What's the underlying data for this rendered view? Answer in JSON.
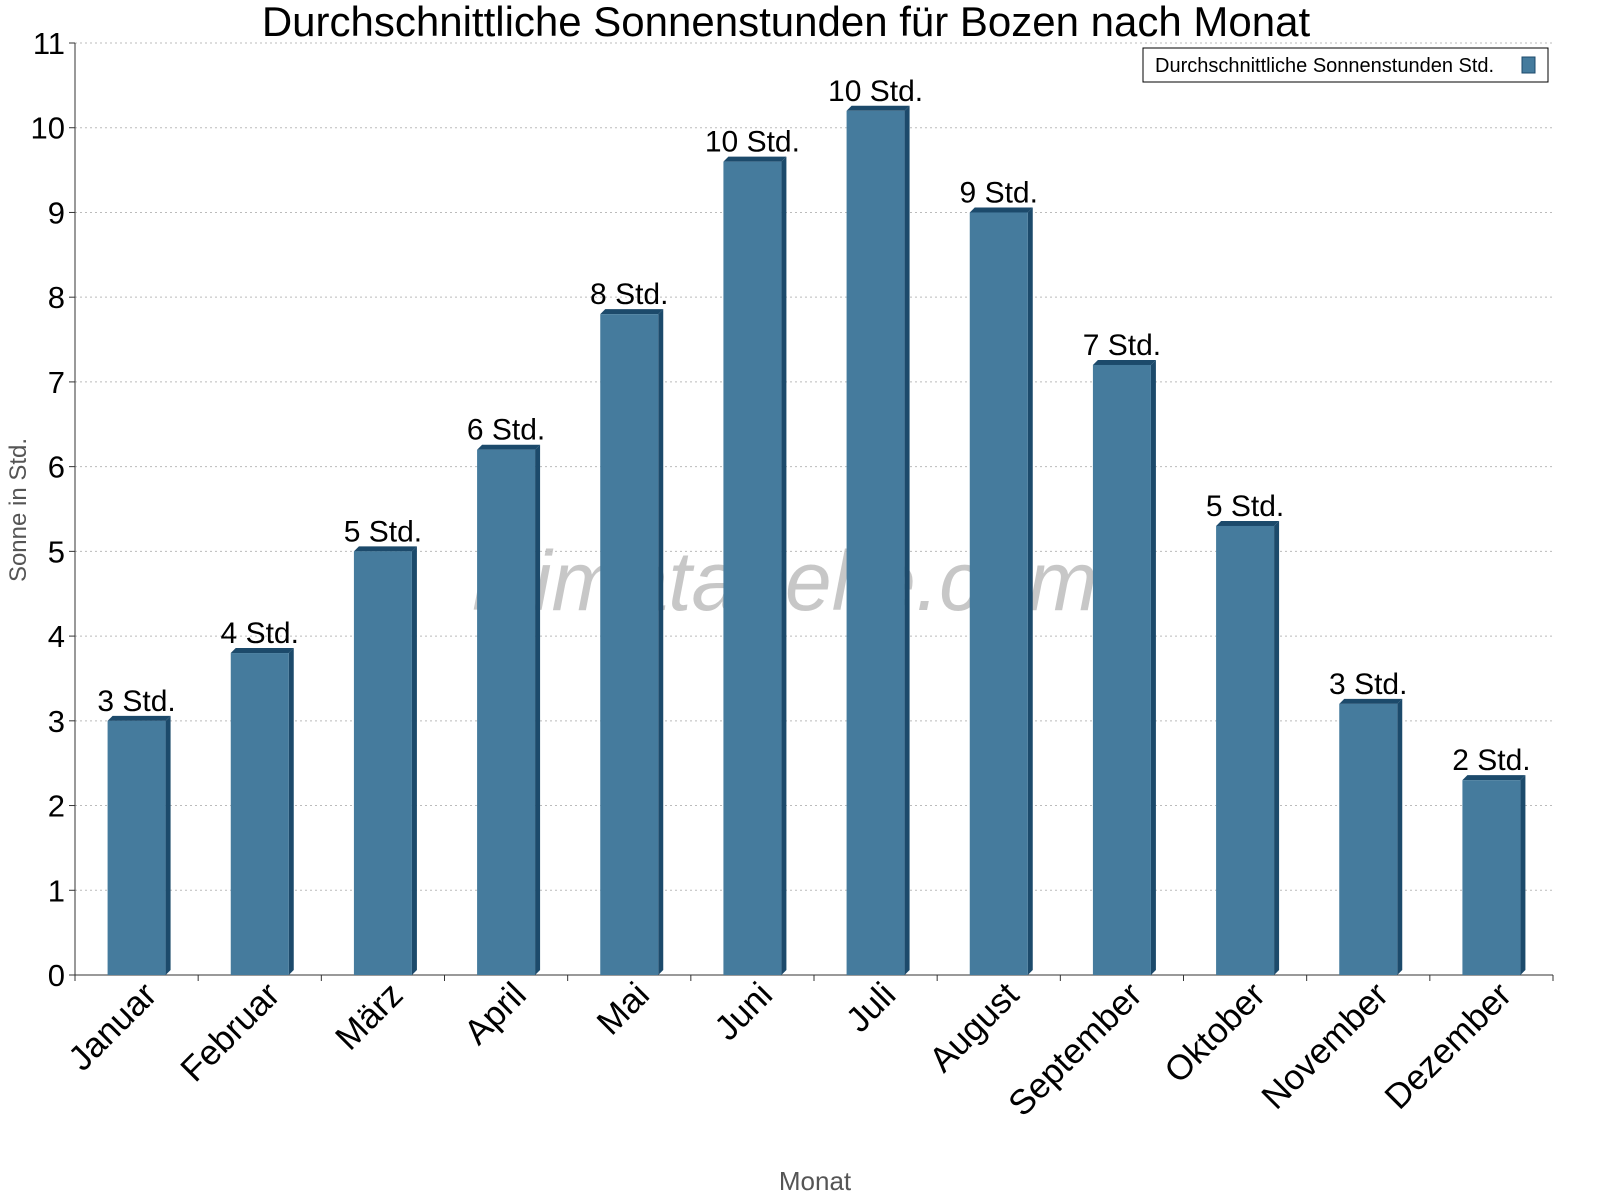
{
  "chart_data": {
    "type": "bar",
    "title": "Durchschnittliche Sonnenstunden für Bozen nach Monat",
    "x_label": "Monat",
    "y_label": "Sonne in Std.",
    "watermark": "klimatabelle.com",
    "categories": [
      "Januar",
      "Februar",
      "März",
      "April",
      "Mai",
      "Juni",
      "Juli",
      "August",
      "September",
      "Oktober",
      "November",
      "Dezember"
    ],
    "series": [
      {
        "name": "Durchschnittliche Sonnenstunden Std.",
        "color": "#457b9d",
        "values": [
          3.0,
          3.8,
          5.0,
          6.2,
          7.8,
          9.6,
          10.2,
          9.0,
          7.2,
          5.3,
          3.2,
          2.3
        ],
        "value_labels": [
          "3 Std.",
          "4 Std.",
          "5 Std.",
          "6 Std.",
          "8 Std.",
          "10 Std.",
          "10 Std.",
          "9 Std.",
          "7 Std.",
          "5 Std.",
          "3 Std.",
          "2 Std."
        ]
      }
    ],
    "ylim": [
      0,
      11
    ],
    "yticks": [
      0,
      1,
      2,
      3,
      4,
      5,
      6,
      7,
      8,
      9,
      10,
      11
    ],
    "grid": true,
    "legend": "top-right"
  }
}
